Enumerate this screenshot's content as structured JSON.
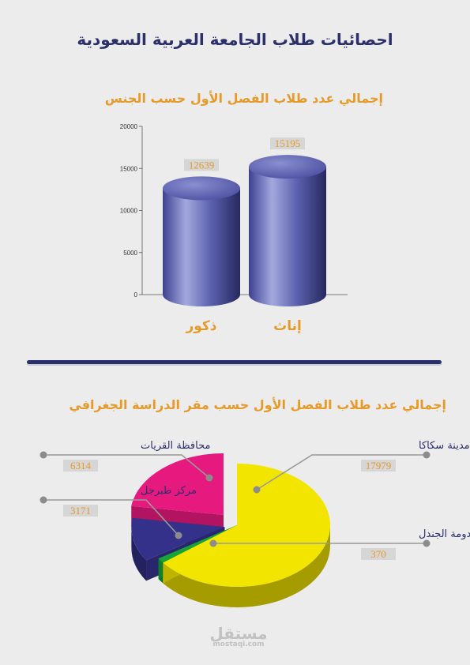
{
  "header": {
    "title": "احصائيات طلاب الجامعة العربية السعودية"
  },
  "watermark": {
    "main": "مستقل",
    "sub": "mostaqi.com"
  },
  "colors": {
    "title": "#2b2f6b",
    "subtitle": "#e69a2a",
    "cylinder": "#5a5ea8",
    "label_box": "#d6d6d6"
  },
  "chart_data": [
    {
      "type": "bar",
      "title": "إجمالي عدد طلاب الفصل الأول حسب الجنس",
      "categories": [
        "ذكور",
        "إناث"
      ],
      "values": [
        12639,
        15195
      ],
      "ylim": [
        0,
        20000
      ],
      "yticks": [
        0,
        5000,
        10000,
        15000,
        20000
      ],
      "grid": false
    },
    {
      "type": "pie",
      "title": "إجمالي عدد طلاب الفصل الأول حسب مقر الدراسة الجغرافي",
      "slices": [
        {
          "label": "مدينة سكاكا",
          "value": 17979,
          "color": "#f2e500"
        },
        {
          "label": "دومة الجندل",
          "value": 370,
          "color": "#15a33a"
        },
        {
          "label": "مركز طبرجل",
          "value": 3171,
          "color": "#34318a"
        },
        {
          "label": "محافظة القريات",
          "value": 6314,
          "color": "#e6197e"
        }
      ]
    }
  ]
}
